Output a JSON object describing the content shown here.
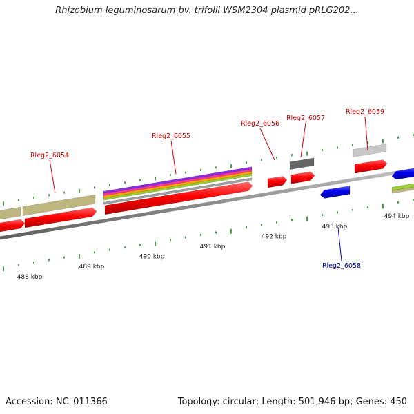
{
  "title": "Rhizobium leguminosarum bv. trifolii WSM2304 plasmid pRLG202...",
  "footer": {
    "accession": "Accession: NC_011366",
    "summary": "Topology: circular; Length: 501,946 bp; Genes: 450"
  },
  "colors": {
    "backbone": "#8c8c8c",
    "forward_gene": "#ff0000",
    "reverse_gene": "#0000ee",
    "label_forward": "#cc0000",
    "label_reverse": "#0000aa",
    "tick": "#1e7a1e",
    "feature_khaki": "#bdb77f",
    "feature_darkgray": "#666666",
    "feature_lightgray": "#c8c8c8",
    "feature_lime": "#9acd32"
  },
  "tick_labels": [
    "488 kbp",
    "489 kbp",
    "490 kbp",
    "491 kbp",
    "492 kbp",
    "493 kbp",
    "494 kbp"
  ],
  "genes": [
    {
      "label": "Rleg2_6054",
      "strand": "forward"
    },
    {
      "label": "Rleg2_6055",
      "strand": "forward"
    },
    {
      "label": "Rleg2_6056",
      "strand": "forward"
    },
    {
      "label": "Rleg2_6057",
      "strand": "forward"
    },
    {
      "label": "Rleg2_6058",
      "strand": "reverse"
    },
    {
      "label": "Rleg2_6059",
      "strand": "forward"
    }
  ]
}
